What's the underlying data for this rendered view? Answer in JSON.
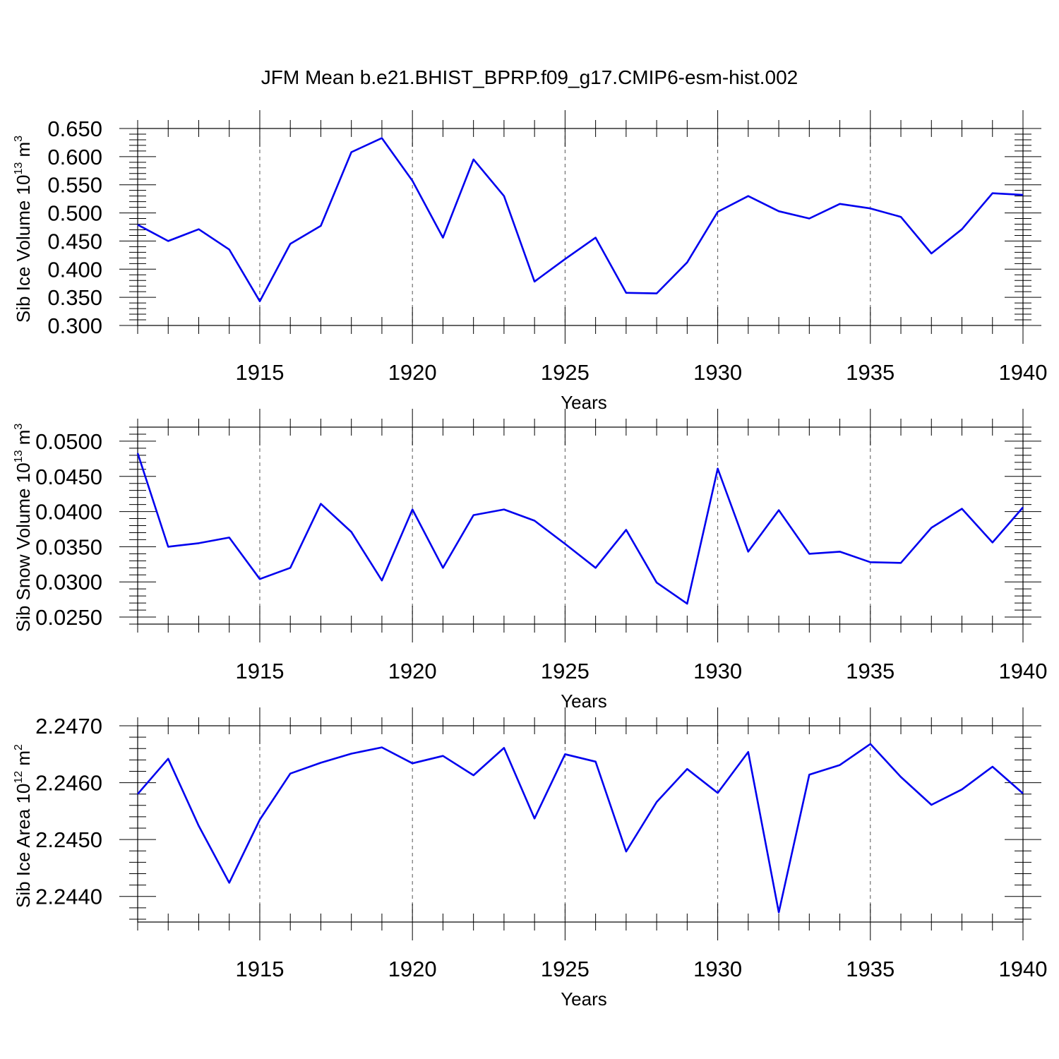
{
  "title": "JFM Mean b.e21.BHIST_BPRP.f09_g17.CMIP6-esm-hist.002",
  "colors": {
    "line": "#0000ee",
    "axis": "#000000",
    "grid": "#555555"
  },
  "chart_data": [
    {
      "type": "line",
      "name": "ice-volume",
      "ylabel": "Sib Ice Volume 10",
      "ylabel_exp": "13",
      "ylabel_unit": " m",
      "ylabel_unit_exp": "3",
      "xlabel": "Years",
      "xlim": [
        1911,
        1940
      ],
      "ylim": [
        0.3,
        0.65
      ],
      "yticks": [
        0.3,
        0.35,
        0.4,
        0.45,
        0.5,
        0.55,
        0.6,
        0.65
      ],
      "ytick_labels": [
        "0.300",
        "0.350",
        "0.400",
        "0.450",
        "0.500",
        "0.550",
        "0.600",
        "0.650"
      ],
      "xticks": [
        1915,
        1920,
        1925,
        1930,
        1935,
        1940
      ],
      "xtick_labels": [
        "1915",
        "1920",
        "1925",
        "1930",
        "1935",
        "1940"
      ],
      "x": [
        1911,
        1912,
        1913,
        1914,
        1915,
        1916,
        1917,
        1918,
        1919,
        1920,
        1921,
        1922,
        1923,
        1924,
        1925,
        1926,
        1927,
        1928,
        1929,
        1930,
        1931,
        1932,
        1933,
        1934,
        1935,
        1936,
        1937,
        1938,
        1939,
        1940
      ],
      "values": [
        0.479,
        0.45,
        0.471,
        0.435,
        0.343,
        0.445,
        0.477,
        0.608,
        0.633,
        0.557,
        0.456,
        0.595,
        0.53,
        0.378,
        0.418,
        0.456,
        0.358,
        0.357,
        0.412,
        0.502,
        0.53,
        0.503,
        0.49,
        0.516,
        0.508,
        0.493,
        0.428,
        0.471,
        0.535,
        0.532
      ]
    },
    {
      "type": "line",
      "name": "snow-volume",
      "ylabel": "Sib Snow Volume 10",
      "ylabel_exp": "13",
      "ylabel_unit": " m",
      "ylabel_unit_exp": "3",
      "xlabel": "Years",
      "xlim": [
        1911,
        1940
      ],
      "ylim": [
        0.024,
        0.052
      ],
      "yticks": [
        0.025,
        0.03,
        0.035,
        0.04,
        0.045,
        0.05
      ],
      "ytick_labels": [
        "0.0250",
        "0.0300",
        "0.0350",
        "0.0400",
        "0.0450",
        "0.0500"
      ],
      "xticks": [
        1915,
        1920,
        1925,
        1930,
        1935,
        1940
      ],
      "xtick_labels": [
        "1915",
        "1920",
        "1925",
        "1930",
        "1935",
        "1940"
      ],
      "x": [
        1911,
        1912,
        1913,
        1914,
        1915,
        1916,
        1917,
        1918,
        1919,
        1920,
        1921,
        1922,
        1923,
        1924,
        1925,
        1926,
        1927,
        1928,
        1929,
        1930,
        1931,
        1932,
        1933,
        1934,
        1935,
        1936,
        1937,
        1938,
        1939,
        1940
      ],
      "values": [
        0.0483,
        0.035,
        0.0355,
        0.0363,
        0.0304,
        0.032,
        0.0411,
        0.0371,
        0.0302,
        0.0403,
        0.032,
        0.0395,
        0.0403,
        0.0387,
        0.0354,
        0.032,
        0.0374,
        0.0299,
        0.0269,
        0.0461,
        0.0343,
        0.0402,
        0.034,
        0.0343,
        0.0328,
        0.0327,
        0.0377,
        0.0404,
        0.0356,
        0.0406
      ]
    },
    {
      "type": "line",
      "name": "ice-area",
      "ylabel": "Sib Ice Area 10",
      "ylabel_exp": "12",
      "ylabel_unit": " m",
      "ylabel_unit_exp": "2",
      "xlabel": "Years",
      "xlim": [
        1911,
        1940
      ],
      "ylim": [
        2.24355,
        2.247
      ],
      "yticks": [
        2.244,
        2.245,
        2.246,
        2.247
      ],
      "ytick_labels": [
        "2.2440",
        "2.2450",
        "2.2460",
        "2.2470"
      ],
      "xticks": [
        1915,
        1920,
        1925,
        1930,
        1935,
        1940
      ],
      "xtick_labels": [
        "1915",
        "1920",
        "1925",
        "1930",
        "1935",
        "1940"
      ],
      "x": [
        1911,
        1912,
        1913,
        1914,
        1915,
        1916,
        1917,
        1918,
        1919,
        1920,
        1921,
        1922,
        1923,
        1924,
        1925,
        1926,
        1927,
        1928,
        1929,
        1930,
        1931,
        1932,
        1933,
        1934,
        1935,
        1936,
        1937,
        1938,
        1939,
        1940
      ],
      "values": [
        2.2458,
        2.24642,
        2.24524,
        2.24424,
        2.24535,
        2.24616,
        2.24635,
        2.24651,
        2.24662,
        2.24634,
        2.24647,
        2.24613,
        2.24661,
        2.24537,
        2.2465,
        2.24637,
        2.24479,
        2.24566,
        2.24624,
        2.24582,
        2.24654,
        2.24372,
        2.24614,
        2.24631,
        2.24668,
        2.2461,
        2.24561,
        2.24588,
        2.24628,
        2.24581
      ]
    }
  ]
}
